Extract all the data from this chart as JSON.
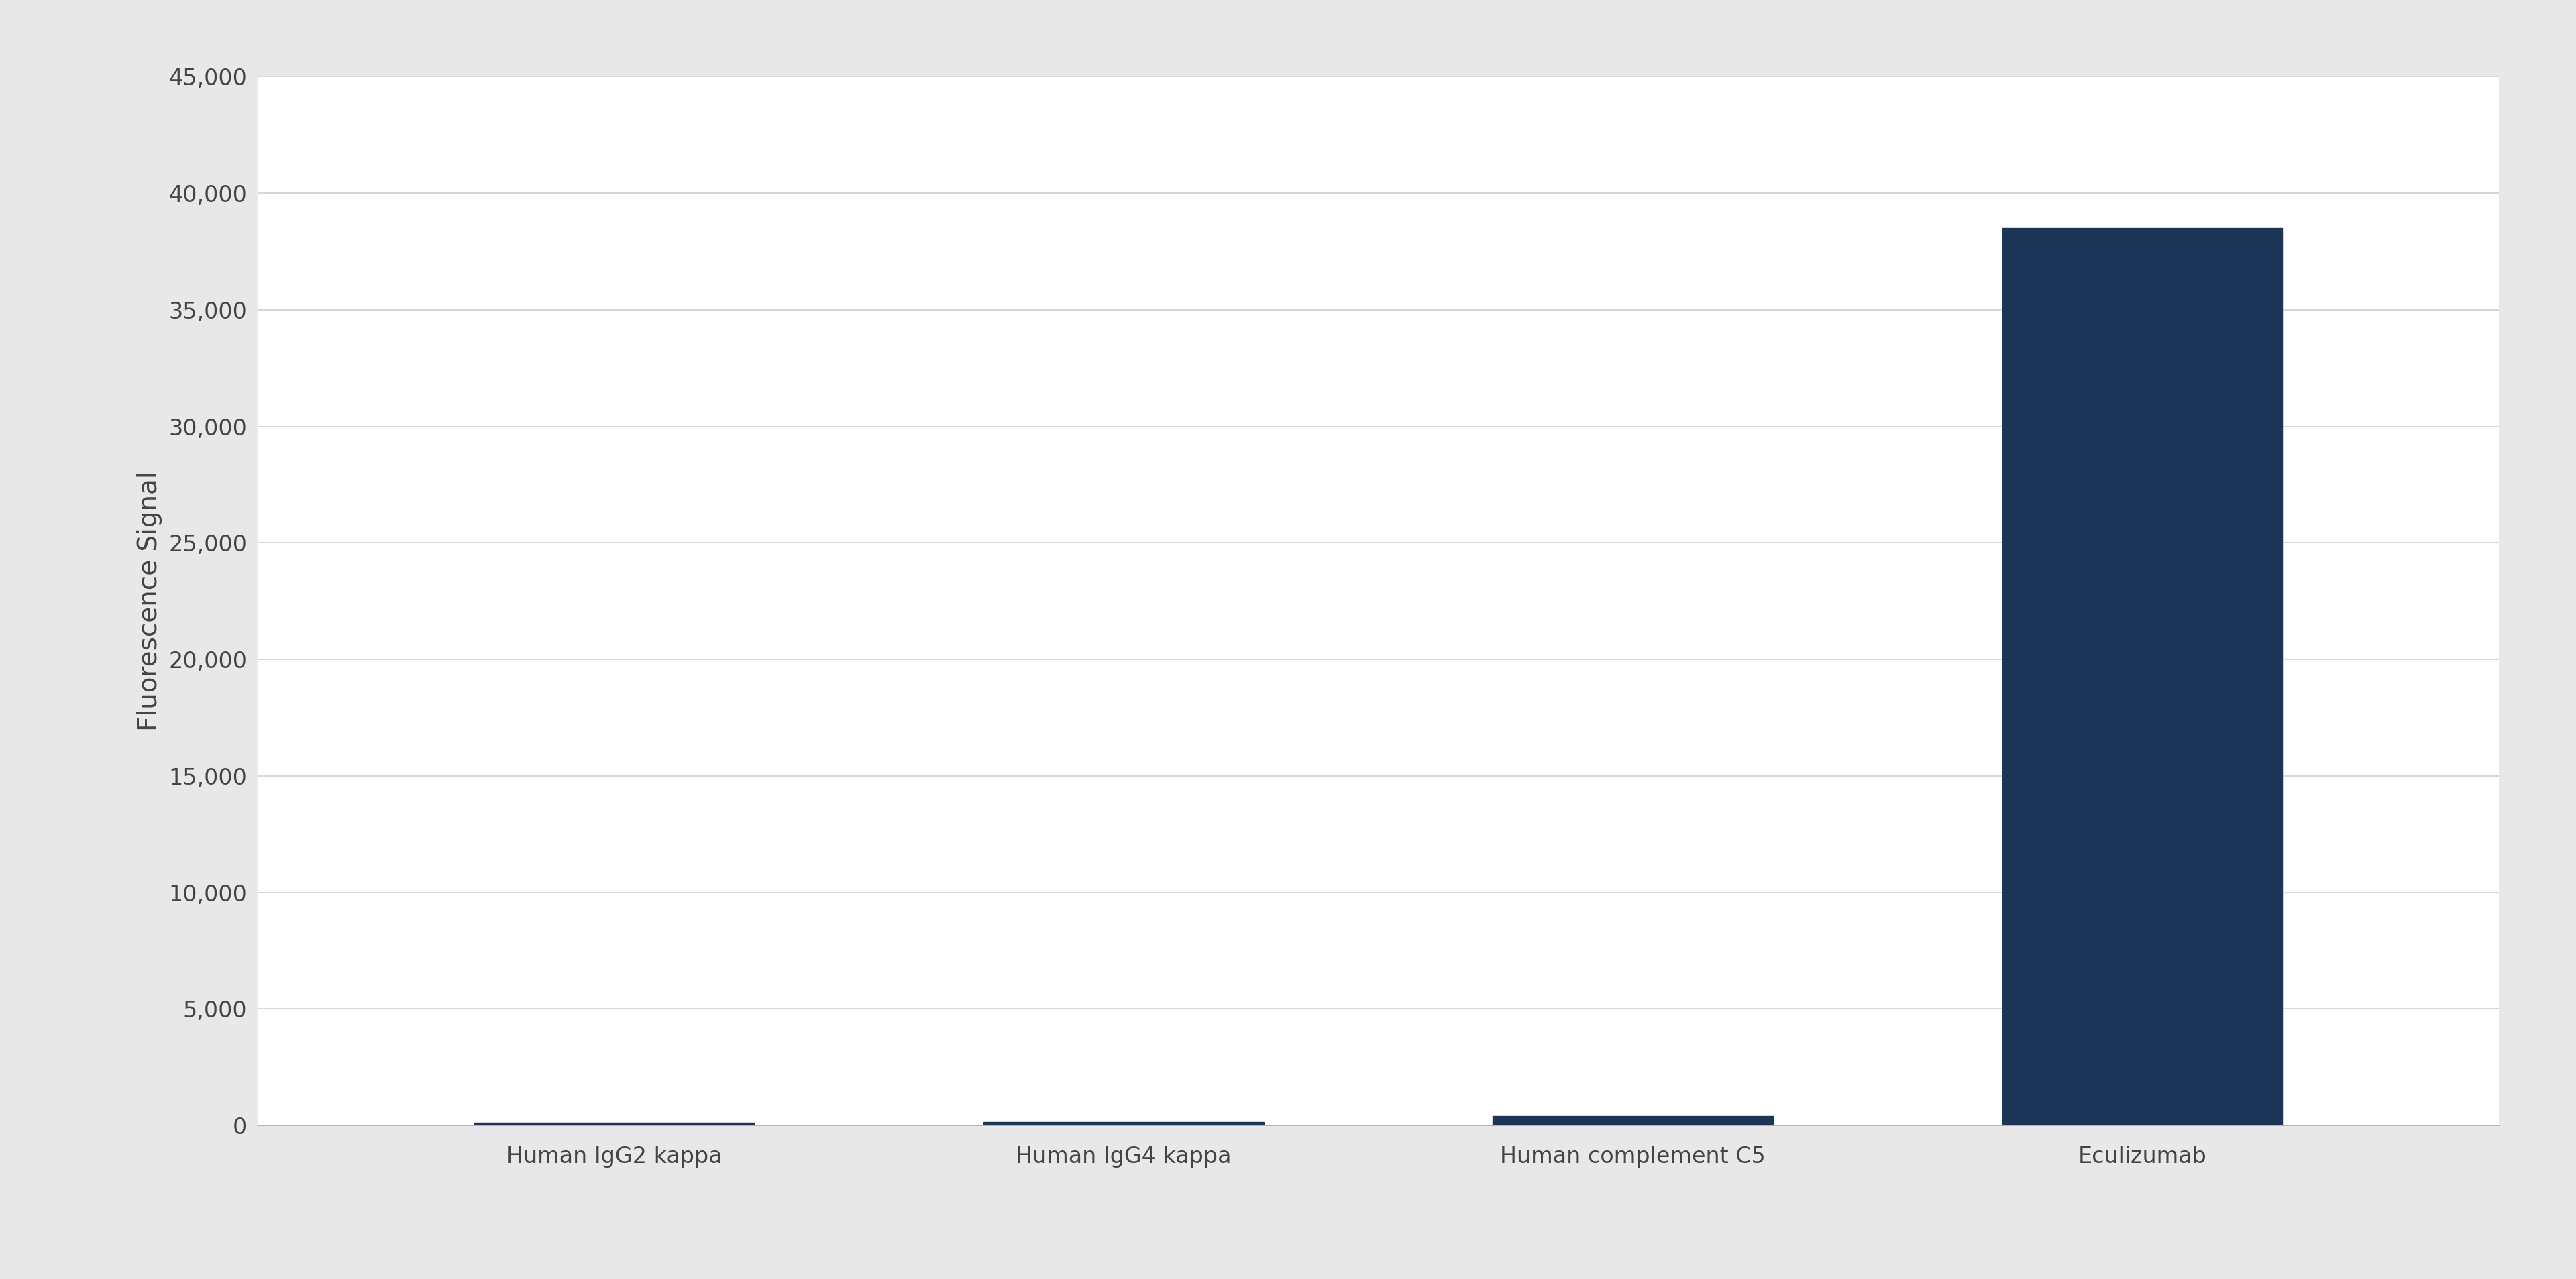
{
  "categories": [
    "Human IgG2 kappa",
    "Human IgG4 kappa",
    "Human complement C5",
    "Eculizumab"
  ],
  "values": [
    120,
    150,
    400,
    38500
  ],
  "bar_color": "#1c3557",
  "background_color": "#f0f0f0",
  "plot_bg_color": "#ffffff",
  "ylabel": "Fluorescence Signal",
  "ylim": [
    0,
    45000
  ],
  "yticks": [
    0,
    5000,
    10000,
    15000,
    20000,
    25000,
    30000,
    35000,
    40000,
    45000
  ],
  "ytick_labels": [
    "0",
    "5,000",
    "10,000",
    "15,000",
    "20,000",
    "25,000",
    "30,000",
    "35,000",
    "40,000",
    "45,000"
  ],
  "grid_color": "#d0d0d0",
  "bar_width": 0.55,
  "tick_label_fontsize": 24,
  "ylabel_fontsize": 28,
  "xlabel_fontsize": 24,
  "outer_bg": "#e8e8e8"
}
